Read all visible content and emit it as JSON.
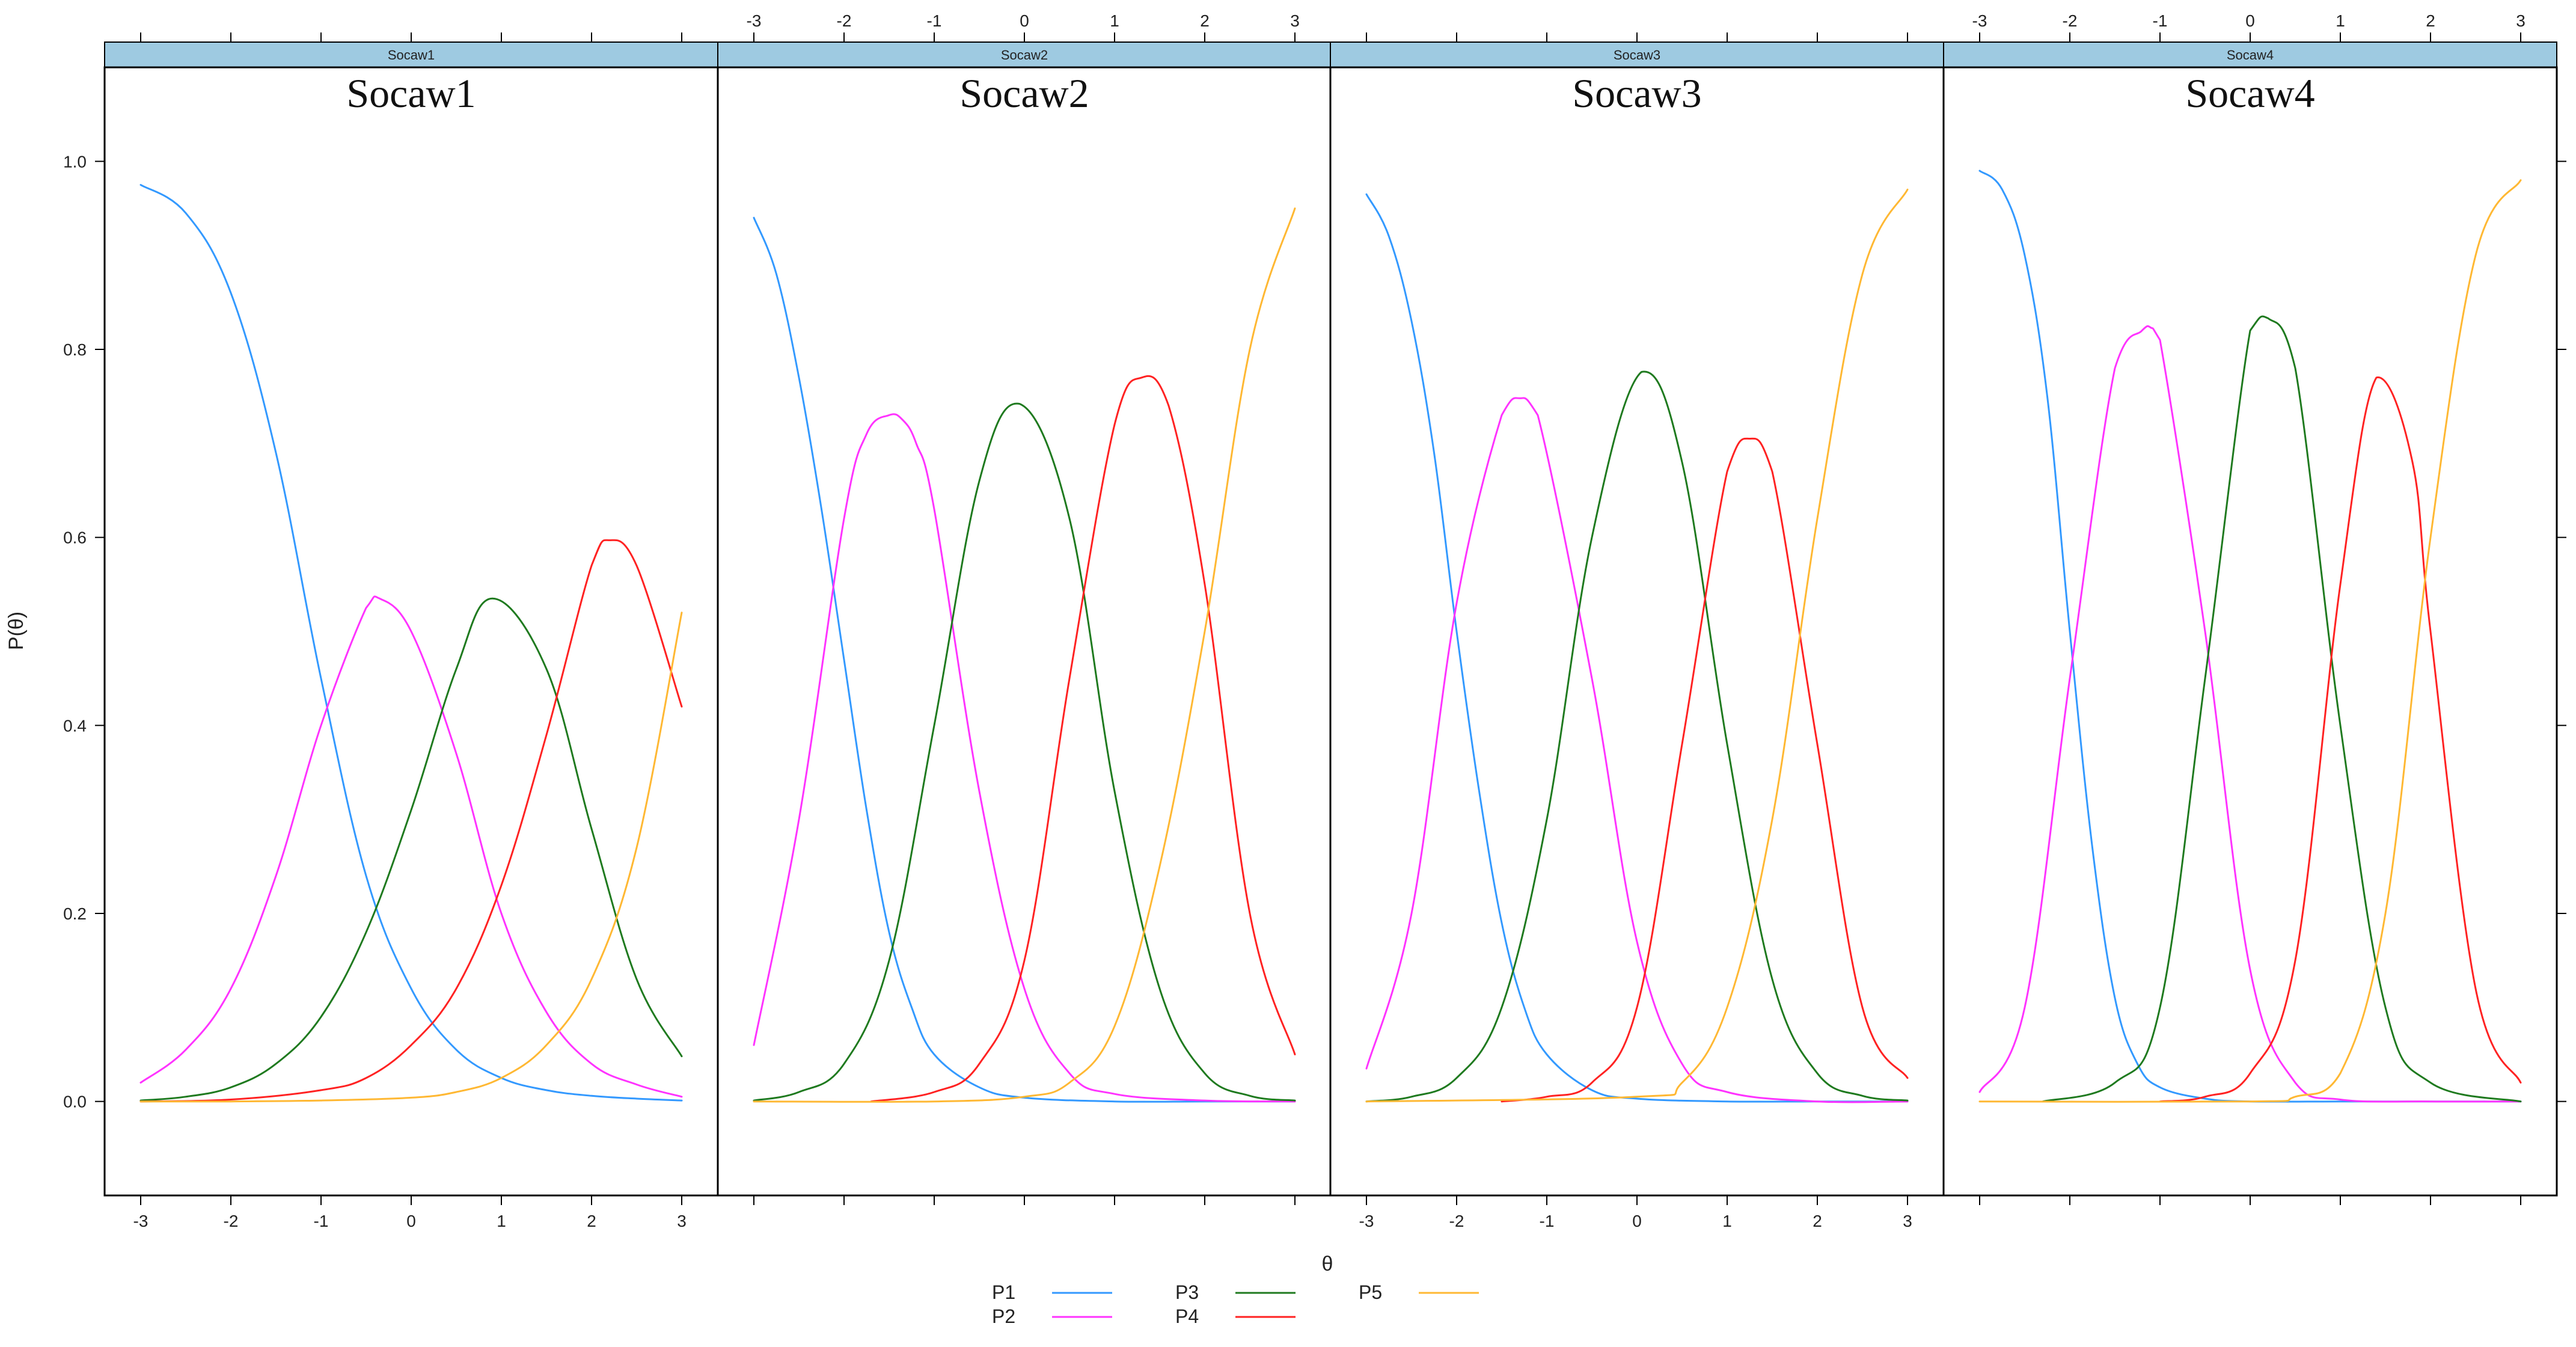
{
  "chart_data": {
    "type": "line",
    "ylabel": "P(θ)",
    "xlabel": "θ",
    "xlim": [
      -3.4,
      3.4
    ],
    "ylim": [
      -0.1,
      1.1
    ],
    "x_ticks": [
      -3,
      -2,
      -1,
      0,
      1,
      2,
      3
    ],
    "y_ticks": [
      0.0,
      0.2,
      0.4,
      0.6,
      0.8,
      1.0
    ],
    "x_tick_labels": [
      "-3",
      "-2",
      "-1",
      "0",
      "1",
      "2",
      "3"
    ],
    "y_tick_labels": [
      "0.0",
      "0.2",
      "0.4",
      "0.6",
      "0.8",
      "1.0"
    ],
    "grid": false,
    "legend_position": "bottom-center",
    "legend": [
      {
        "name": "P1",
        "color": "#3399ff"
      },
      {
        "name": "P2",
        "color": "#ff33ff"
      },
      {
        "name": "P3",
        "color": "#1f7a1f"
      },
      {
        "name": "P4",
        "color": "#ff2222"
      },
      {
        "name": "P5",
        "color": "#ffb833"
      }
    ],
    "panels": [
      {
        "strip": "Socaw1",
        "title": "Socaw1",
        "series": [
          {
            "name": "P1",
            "x": [
              -3,
              -2.5,
              -2,
              -1.5,
              -1,
              -0.5,
              0,
              0.5,
              1,
              1.5,
              2,
              2.5,
              3
            ],
            "y": [
              0.975,
              0.945,
              0.86,
              0.69,
              0.45,
              0.24,
              0.12,
              0.055,
              0.025,
              0.012,
              0.006,
              0.003,
              0.001
            ]
          },
          {
            "name": "P2",
            "x": [
              -3,
              -2.5,
              -2,
              -1.5,
              -1,
              -0.5,
              -0.35,
              0,
              0.5,
              1,
              1.5,
              2,
              2.5,
              3
            ],
            "y": [
              0.02,
              0.055,
              0.12,
              0.24,
              0.4,
              0.525,
              0.535,
              0.5,
              0.37,
              0.2,
              0.095,
              0.04,
              0.018,
              0.005
            ]
          },
          {
            "name": "P3",
            "x": [
              -3,
              -2.5,
              -2,
              -1.5,
              -1,
              -0.5,
              0,
              0.5,
              0.9,
              1.5,
              2,
              2.5,
              3
            ],
            "y": [
              0.001,
              0.005,
              0.015,
              0.04,
              0.09,
              0.18,
              0.31,
              0.46,
              0.535,
              0.46,
              0.29,
              0.13,
              0.048
            ]
          },
          {
            "name": "P4",
            "x": [
              -3,
              -2,
              -1,
              -0.5,
              0,
              0.5,
              1,
              1.5,
              2,
              2.2,
              2.5,
              3
            ],
            "y": [
              0,
              0.002,
              0.012,
              0.025,
              0.06,
              0.12,
              0.23,
              0.39,
              0.57,
              0.597,
              0.57,
              0.42
            ]
          },
          {
            "name": "P5",
            "x": [
              -3,
              -2,
              -1,
              0,
              0.5,
              1,
              1.5,
              2,
              2.5,
              3
            ],
            "y": [
              0,
              0,
              0.001,
              0.004,
              0.01,
              0.025,
              0.06,
              0.13,
              0.27,
              0.52
            ]
          }
        ]
      },
      {
        "strip": "Socaw2",
        "title": "Socaw2",
        "series": [
          {
            "name": "P1",
            "x": [
              -3,
              -2.75,
              -2.5,
              -2.25,
              -2,
              -1.75,
              -1.5,
              -1.25,
              -1,
              -0.5,
              0,
              1,
              2,
              3
            ],
            "y": [
              0.94,
              0.88,
              0.77,
              0.63,
              0.47,
              0.31,
              0.18,
              0.1,
              0.05,
              0.015,
              0.004,
              0,
              0,
              0
            ]
          },
          {
            "name": "P2",
            "x": [
              -3,
              -2.5,
              -2,
              -1.75,
              -1.5,
              -1.35,
              -1.2,
              -1,
              -0.5,
              0,
              0.5,
              1,
              2,
              3
            ],
            "y": [
              0.06,
              0.3,
              0.62,
              0.71,
              0.73,
              0.725,
              0.7,
              0.63,
              0.33,
              0.12,
              0.03,
              0.008,
              0.001,
              0
            ]
          },
          {
            "name": "P3",
            "x": [
              -3,
              -2.5,
              -2,
              -1.5,
              -1,
              -0.5,
              -0.05,
              0.5,
              1,
              1.5,
              2,
              2.5,
              3
            ],
            "y": [
              0.001,
              0.01,
              0.04,
              0.15,
              0.4,
              0.66,
              0.742,
              0.62,
              0.33,
              0.12,
              0.03,
              0.006,
              0.001
            ]
          },
          {
            "name": "P4",
            "x": [
              -1.7,
              -1,
              -0.5,
              0,
              0.5,
              1,
              1.3,
              1.6,
              2,
              2.5,
              3
            ],
            "y": [
              0,
              0.01,
              0.04,
              0.15,
              0.45,
              0.72,
              0.77,
              0.74,
              0.55,
              0.2,
              0.05
            ]
          },
          {
            "name": "P5",
            "x": [
              -3,
              -1,
              0,
              0.5,
              1,
              1.5,
              2,
              2.5,
              3
            ],
            "y": [
              0,
              0,
              0.005,
              0.02,
              0.08,
              0.25,
              0.5,
              0.8,
              0.95
            ]
          }
        ]
      },
      {
        "strip": "Socaw3",
        "title": "Socaw3",
        "series": [
          {
            "name": "P1",
            "x": [
              -3,
              -2.75,
              -2.5,
              -2.25,
              -2,
              -1.75,
              -1.5,
              -1.25,
              -1,
              -0.5,
              0,
              1,
              2,
              3
            ],
            "y": [
              0.965,
              0.92,
              0.83,
              0.69,
              0.5,
              0.33,
              0.19,
              0.1,
              0.05,
              0.012,
              0.003,
              0,
              0,
              0
            ]
          },
          {
            "name": "P2",
            "x": [
              -3,
              -2.5,
              -2,
              -1.5,
              -1.3,
              -1.1,
              -0.5,
              0,
              0.5,
              1,
              2,
              3
            ],
            "y": [
              0.035,
              0.2,
              0.53,
              0.73,
              0.748,
              0.73,
              0.45,
              0.17,
              0.04,
              0.01,
              0,
              0
            ]
          },
          {
            "name": "P3",
            "x": [
              -3,
              -2.5,
              -2,
              -1.5,
              -1,
              -0.5,
              0.05,
              0.5,
              1,
              1.5,
              2,
              2.5,
              3
            ],
            "y": [
              0,
              0.005,
              0.025,
              0.1,
              0.3,
              0.6,
              0.776,
              0.68,
              0.38,
              0.13,
              0.03,
              0.006,
              0.001
            ]
          },
          {
            "name": "P4",
            "x": [
              -1.5,
              -1,
              -0.5,
              0,
              0.5,
              1,
              1.25,
              1.5,
              2,
              2.5,
              3
            ],
            "y": [
              0,
              0.005,
              0.02,
              0.1,
              0.38,
              0.67,
              0.705,
              0.67,
              0.38,
              0.1,
              0.025
            ]
          },
          {
            "name": "P5",
            "x": [
              -3,
              0,
              0.5,
              1,
              1.5,
              2,
              2.5,
              3
            ],
            "y": [
              0,
              0.005,
              0.02,
              0.1,
              0.3,
              0.62,
              0.88,
              0.97
            ]
          }
        ]
      },
      {
        "strip": "Socaw4",
        "title": "Socaw4",
        "series": [
          {
            "name": "P1",
            "x": [
              -3,
              -2.75,
              -2.5,
              -2.25,
              -2,
              -1.75,
              -1.5,
              -1.25,
              -1,
              -0.5,
              0,
              1,
              2,
              3
            ],
            "y": [
              0.99,
              0.97,
              0.9,
              0.75,
              0.5,
              0.27,
              0.11,
              0.04,
              0.015,
              0.003,
              0,
              0,
              0,
              0
            ]
          },
          {
            "name": "P2",
            "x": [
              -3,
              -2.5,
              -2,
              -1.5,
              -1.2,
              -1.1,
              -1,
              -0.5,
              0,
              0.5,
              1,
              2,
              3
            ],
            "y": [
              0.01,
              0.1,
              0.45,
              0.78,
              0.82,
              0.823,
              0.81,
              0.5,
              0.14,
              0.02,
              0.002,
              0,
              0
            ]
          },
          {
            "name": "P3",
            "x": [
              -2.3,
              -1.5,
              -1,
              -0.5,
              0,
              0.2,
              0.5,
              1,
              1.5,
              2,
              3
            ],
            "y": [
              0,
              0.02,
              0.1,
              0.45,
              0.82,
              0.833,
              0.78,
              0.4,
              0.1,
              0.02,
              0
            ]
          },
          {
            "name": "P4",
            "x": [
              -1,
              -0.5,
              0,
              0.5,
              1,
              1.4,
              1.8,
              2,
              2.5,
              3
            ],
            "y": [
              0,
              0.005,
              0.03,
              0.15,
              0.55,
              0.77,
              0.68,
              0.5,
              0.12,
              0.02
            ]
          },
          {
            "name": "P5",
            "x": [
              -3,
              0,
              0.5,
              1,
              1.5,
              2,
              2.5,
              3
            ],
            "y": [
              0,
              0,
              0.005,
              0.03,
              0.2,
              0.6,
              0.9,
              0.98
            ]
          }
        ]
      }
    ]
  }
}
